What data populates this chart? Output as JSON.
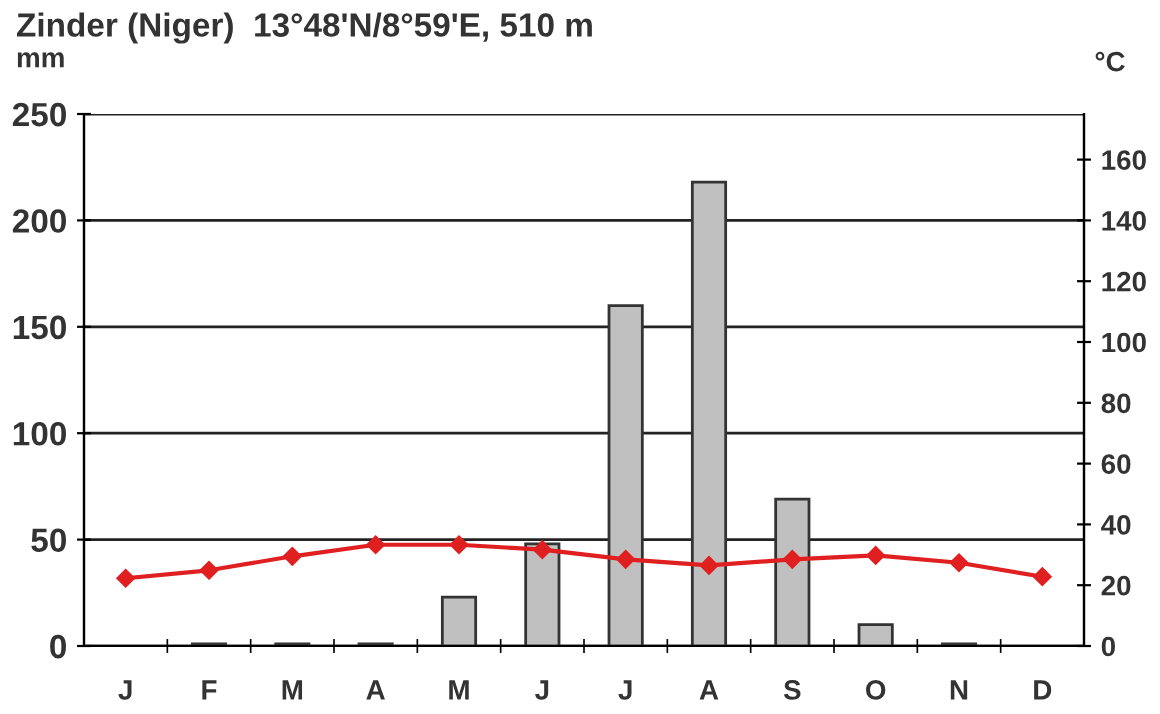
{
  "chart_data": {
    "type": "bar",
    "title": "Zinder (Niger)  13°48'N/8°59'E, 510 m",
    "ylabel": "mm",
    "y2label": "°C",
    "categories": [
      "J",
      "F",
      "M",
      "A",
      "M",
      "J",
      "J",
      "A",
      "S",
      "O",
      "N",
      "D"
    ],
    "series": [
      {
        "color": "#c0c0c0",
        "values": [
          0,
          1,
          1,
          1,
          23,
          48,
          160,
          218,
          69,
          10,
          1,
          0
        ]
      },
      {
        "type": "line",
        "axis": "y2",
        "color": "#e02020",
        "marker": "diamond",
        "values": [
          22.3,
          24.9,
          29.5,
          33.3,
          33.3,
          31.7,
          28.5,
          26.5,
          28.5,
          29.8,
          27.4,
          22.8
        ]
      }
    ],
    "ylim": [
      0,
      250
    ],
    "yticks": [
      0,
      50,
      100,
      150,
      200,
      250
    ],
    "y2lim": [
      0,
      175
    ],
    "y2ticks": [
      0,
      20,
      40,
      60,
      80,
      100,
      120,
      140,
      160
    ],
    "grid": "y",
    "legend": false
  }
}
